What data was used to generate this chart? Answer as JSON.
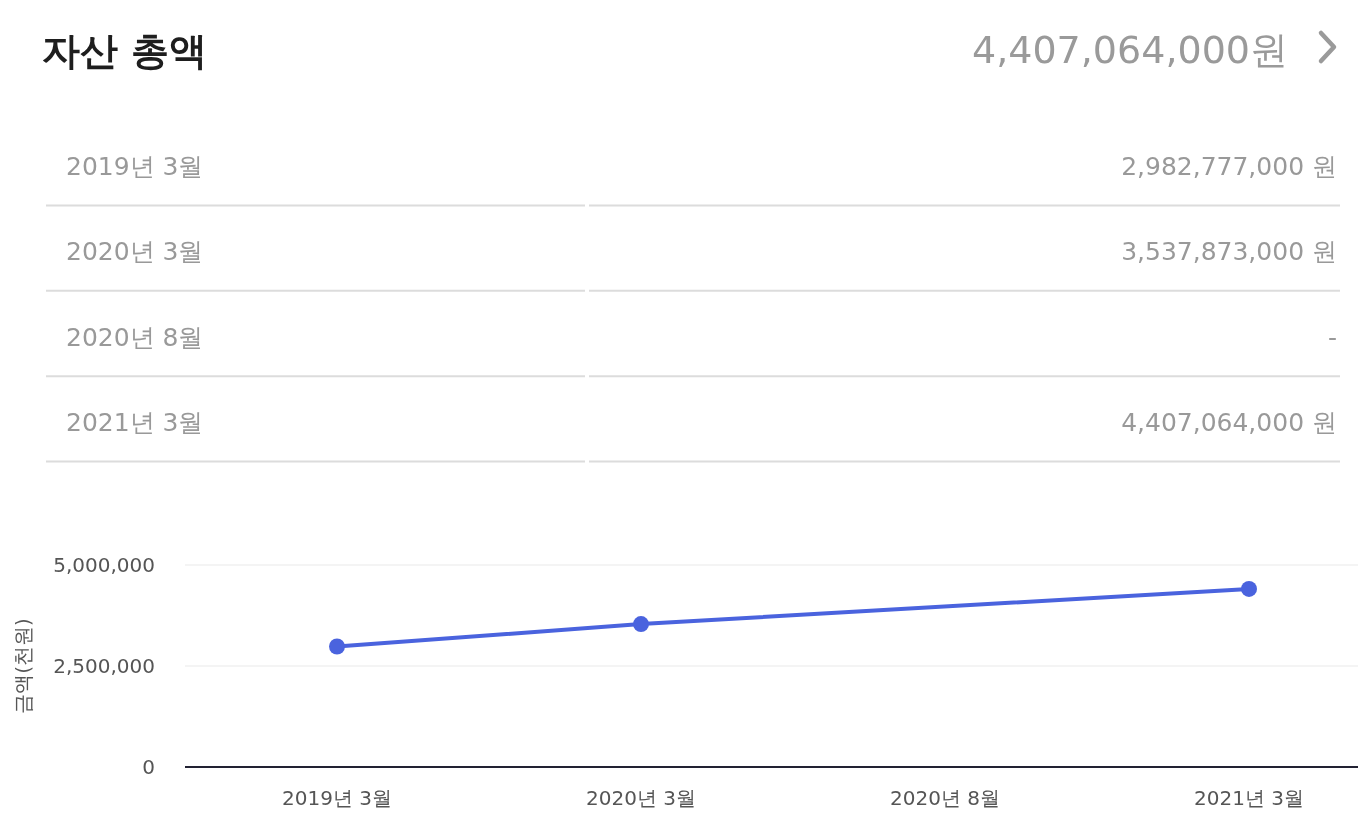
{
  "chart_data": {
    "type": "line",
    "title": "자산 총액",
    "subtitle": "4,407,064,000원",
    "categories": [
      "2019년 3월",
      "2020년 3월",
      "2020년 8월",
      "2021년 3월"
    ],
    "series": [
      {
        "color": "#4a63de",
        "values": [
          2982777,
          3537873,
          null,
          4407064
        ]
      }
    ],
    "annotations": [
      "2,982,777,000 원",
      "3,537,873,000 원",
      "-",
      "4,407,064,000 원"
    ],
    "ylabel": "금액(천원)",
    "ylim": [
      0,
      5000000
    ],
    "yticks": [
      0,
      {
        "value": 2500000,
        "label": "2,500,000"
      },
      {
        "value": 5000000,
        "label": "5,000,000"
      }
    ],
    "grid": "y",
    "marker": "circle",
    "line_style": "solid"
  }
}
